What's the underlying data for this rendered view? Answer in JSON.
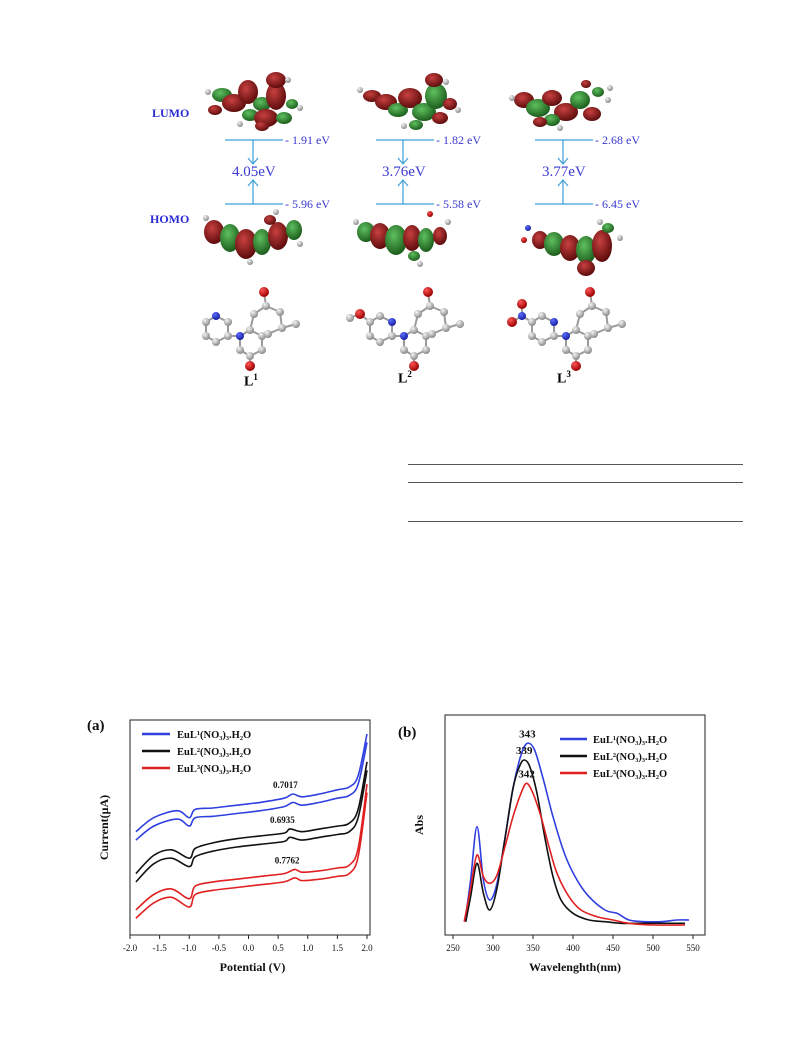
{
  "mo_figure": {
    "lumo_label": "LUMO",
    "homo_label": "HOMO",
    "columns": [
      {
        "ligand": "L",
        "sup": "1",
        "lumo_energy": "- 1.91 eV",
        "gap": "4.05eV",
        "homo_energy": "- 5.96 eV"
      },
      {
        "ligand": "L",
        "sup": "2",
        "lumo_energy": "- 1.82 eV",
        "gap": "3.76eV",
        "homo_energy": "- 5.58 eV"
      },
      {
        "ligand": "L",
        "sup": "3",
        "lumo_energy": "- 2.68 eV",
        "gap": "3.77eV",
        "homo_energy": "- 6.45 eV"
      }
    ],
    "colors": {
      "lobe_red": "#8b1a1a",
      "lobe_green": "#2e8b2e",
      "arrow": "#3aa0d8"
    }
  },
  "chart_data": [
    {
      "type": "line",
      "panel_label": "(a)",
      "xlabel": "Potential (V)",
      "ylabel": "Current(μA)",
      "xlim": [
        -2.0,
        2.0
      ],
      "xticks": [
        "-2.0",
        "-1.5",
        "-1.0",
        "-0.5",
        "0.0",
        "0.5",
        "1.0",
        "1.5",
        "2.0"
      ],
      "legend_position": "top-left",
      "series": [
        {
          "name": "EuL¹(NO₃)₃.H₂O",
          "color": "#2f3fe0",
          "annotation": "0.7017",
          "x": [
            -1.9,
            -1.6,
            -1.2,
            -1.0,
            -0.9,
            -0.6,
            -0.2,
            0.2,
            0.6,
            0.75,
            0.9,
            1.2,
            1.5,
            1.7,
            1.85,
            2.0
          ],
          "y": [
            5.2,
            5.7,
            5.95,
            5.7,
            6.0,
            6.05,
            6.15,
            6.25,
            6.4,
            6.55,
            6.45,
            6.55,
            6.7,
            6.8,
            7.2,
            8.7
          ]
        },
        {
          "name": "EuL²(NO₃)₃.H₂O",
          "color": "#111111",
          "annotation": "0.6935",
          "x": [
            -1.9,
            -1.6,
            -1.3,
            -1.0,
            -0.9,
            -0.6,
            -0.2,
            0.2,
            0.6,
            0.7,
            0.9,
            1.2,
            1.5,
            1.7,
            1.85,
            2.0
          ],
          "y": [
            3.7,
            4.35,
            4.55,
            4.25,
            4.6,
            4.8,
            4.95,
            5.05,
            5.15,
            5.3,
            5.2,
            5.3,
            5.4,
            5.5,
            6.0,
            7.7
          ]
        },
        {
          "name": "EuL³(NO₃)₃.H₂O",
          "color": "#e02020",
          "annotation": "0.7762",
          "x": [
            -1.9,
            -1.6,
            -1.3,
            -1.0,
            -0.9,
            -0.6,
            -0.2,
            0.2,
            0.6,
            0.78,
            0.9,
            1.2,
            1.5,
            1.7,
            1.85,
            2.0
          ],
          "y": [
            2.4,
            2.95,
            3.15,
            2.8,
            3.25,
            3.4,
            3.5,
            3.6,
            3.7,
            3.85,
            3.75,
            3.8,
            3.9,
            4.0,
            4.6,
            6.9
          ]
        }
      ]
    },
    {
      "type": "line",
      "panel_label": "(b)",
      "xlabel": "Wavelenghth(nm)",
      "ylabel": "Abs",
      "xlim": [
        250,
        550
      ],
      "xticks": [
        "250",
        "300",
        "350",
        "400",
        "450",
        "500",
        "550"
      ],
      "legend_position": "top-right",
      "series": [
        {
          "name": "EuL¹(NO₃)₃.H₂O",
          "color": "#2f3fe0",
          "peak_label": "343",
          "x": [
            265,
            272,
            280,
            288,
            296,
            305,
            315,
            325,
            335,
            343,
            352,
            362,
            375,
            390,
            405,
            420,
            440,
            455,
            470,
            490,
            510,
            530,
            545
          ],
          "y": [
            0.05,
            0.3,
            0.62,
            0.3,
            0.18,
            0.28,
            0.55,
            0.85,
            1.05,
            1.12,
            1.08,
            0.92,
            0.68,
            0.45,
            0.3,
            0.2,
            0.12,
            0.1,
            0.06,
            0.05,
            0.05,
            0.06,
            0.06
          ]
        },
        {
          "name": "EuL²(NO₃)₃.H₂O",
          "color": "#111111",
          "peak_label": "339",
          "x": [
            266,
            272,
            280,
            288,
            296,
            305,
            315,
            325,
            333,
            339,
            346,
            355,
            365,
            375,
            385,
            400,
            420,
            440,
            460,
            480,
            510,
            540
          ],
          "y": [
            0.05,
            0.2,
            0.4,
            0.22,
            0.12,
            0.25,
            0.55,
            0.85,
            0.98,
            1.02,
            0.98,
            0.82,
            0.55,
            0.32,
            0.18,
            0.1,
            0.06,
            0.05,
            0.04,
            0.04,
            0.04,
            0.04
          ]
        },
        {
          "name": "EuL³(NO₃)₃.H₂O",
          "color": "#e02020",
          "peak_label": "342",
          "x": [
            264,
            272,
            280,
            288,
            296,
            305,
            315,
            325,
            335,
            342,
            350,
            360,
            370,
            380,
            395,
            410,
            430,
            450,
            470,
            500,
            540
          ],
          "y": [
            0.05,
            0.25,
            0.45,
            0.32,
            0.28,
            0.33,
            0.5,
            0.68,
            0.82,
            0.88,
            0.82,
            0.68,
            0.5,
            0.34,
            0.2,
            0.12,
            0.08,
            0.06,
            0.04,
            0.03,
            0.03
          ]
        }
      ]
    }
  ]
}
